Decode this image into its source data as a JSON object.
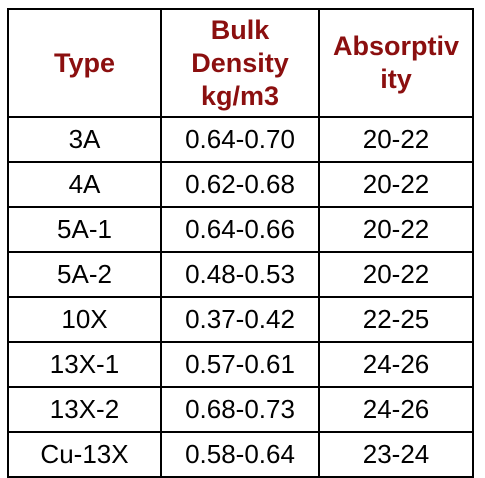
{
  "table": {
    "headers": [
      {
        "lines": [
          "Type"
        ]
      },
      {
        "lines": [
          "Bulk",
          "Density",
          "kg/m3"
        ]
      },
      {
        "lines": [
          "Absorptiv",
          "ity"
        ]
      }
    ],
    "rows": [
      [
        "3A",
        "0.64-0.70",
        "20-22"
      ],
      [
        "4A",
        "0.62-0.68",
        "20-22"
      ],
      [
        "5A-1",
        "0.64-0.66",
        "20-22"
      ],
      [
        "5A-2",
        "0.48-0.53",
        "20-22"
      ],
      [
        "10X",
        "0.37-0.42",
        "22-25"
      ],
      [
        "13X-1",
        "0.57-0.61",
        "24-26"
      ],
      [
        "13X-2",
        "0.68-0.73",
        "24-26"
      ],
      [
        "Cu-13X",
        "0.58-0.64",
        "23-24"
      ]
    ]
  },
  "colors": {
    "header_text": "#8b0f0f",
    "cell_text": "#000000",
    "border": "#000000"
  }
}
